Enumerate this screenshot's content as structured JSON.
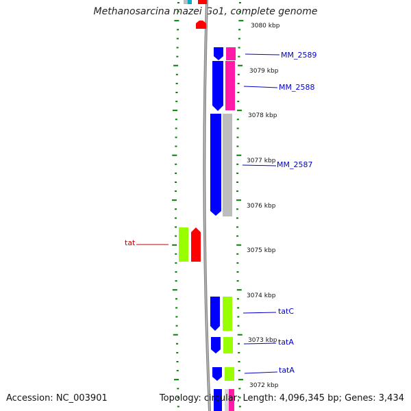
{
  "title": "Methanosarcina mazei Go1, complete genome",
  "footer": {
    "accession": "Accession: NC_003901",
    "topology": "Topology: circular; Length: 4,096,345 bp; Genes: 3,434"
  },
  "colors": {
    "forward_cds": "#0000ff",
    "reverse_cds": "#ff0000",
    "tick": "#008000",
    "backbone": "#888888",
    "label_forward": "#0000c8",
    "label_reverse": "#c80000",
    "cog_pink": "#ff1aa8",
    "cog_gray": "#bdbdbd",
    "cog_lime": "#99ff00"
  },
  "kbp_labels": [
    "3080 kbp",
    "3079 kbp",
    "3078 kbp",
    "3077 kbp",
    "3076 kbp",
    "3075 kbp",
    "3074 kbp",
    "3073 kbp",
    "3072 kbp"
  ],
  "genes": [
    {
      "name": "MM_2589",
      "strand": "forward"
    },
    {
      "name": "MM_2588",
      "strand": "forward"
    },
    {
      "name": "MM_2587",
      "strand": "forward"
    },
    {
      "name": "tat",
      "strand": "reverse"
    },
    {
      "name": "tatC",
      "strand": "forward"
    },
    {
      "name": "tatA",
      "strand": "forward"
    },
    {
      "name": "tatA",
      "strand": "forward"
    }
  ]
}
